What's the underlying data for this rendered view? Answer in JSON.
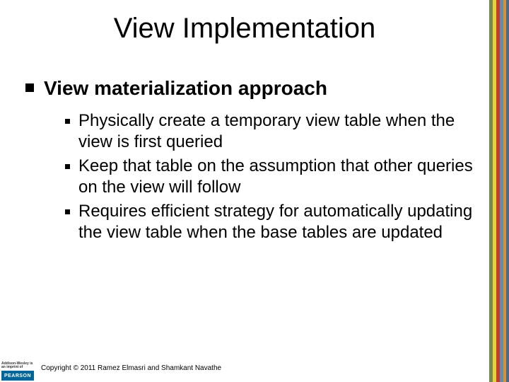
{
  "title": "View Implementation",
  "level1": {
    "text": "View materialization approach",
    "bullet_color": "#000000"
  },
  "level2": [
    {
      "text": "Physically create a temporary view table when the view is first queried"
    },
    {
      "text": "Keep that table on the assumption that other queries on the view will follow"
    },
    {
      "text": "Requires efficient strategy for automatically updating the view table when the base tables are updated"
    }
  ],
  "footer": {
    "logo_top": "Addison-Wesley is an imprint of",
    "logo_brand": "PEARSON",
    "copyright": "Copyright © 2011 Ramez Elmasri and Shamkant Navathe"
  },
  "styling": {
    "background_color": "#ffffff",
    "title_fontsize": 40,
    "title_color": "#000000",
    "level1_fontsize": 28,
    "level1_fontweight": 700,
    "level2_fontsize": 24,
    "bullet_color": "#000000",
    "edge_stripes": [
      {
        "color": "#748a4a",
        "width": 5
      },
      {
        "color": "#e9cf3a",
        "width": 5
      },
      {
        "color": "#c23b2e",
        "width": 5
      },
      {
        "color": "#5e8fa3",
        "width": 5
      },
      {
        "color": "#d98f3a",
        "width": 4
      },
      {
        "color": "#4a6a8a",
        "width": 4
      }
    ],
    "logo_bg": "#006699",
    "copyright_fontsize": 10
  }
}
